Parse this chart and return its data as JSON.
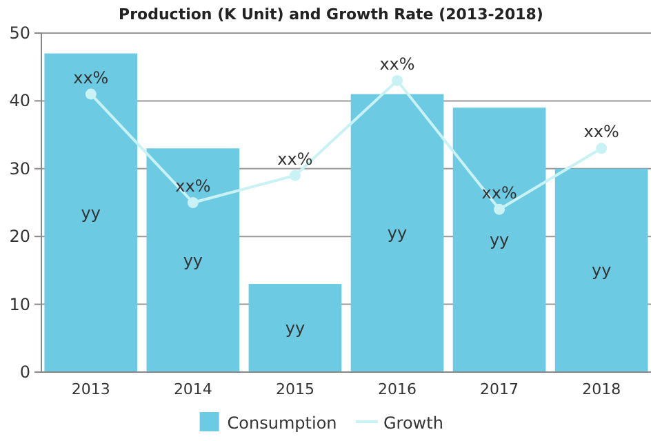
{
  "chart_data": {
    "type": "bar",
    "title": "Production (K Unit) and Growth Rate (2013-2018)",
    "categories": [
      "2013",
      "2014",
      "2015",
      "2016",
      "2017",
      "2018"
    ],
    "series": [
      {
        "name": "Consumption",
        "color": "#6ccbe3",
        "values": [
          47,
          33,
          13,
          41,
          39,
          30
        ],
        "value_labels": [
          "yy",
          "yy",
          "yy",
          "yy",
          "yy",
          "yy"
        ]
      },
      {
        "name": "Growth",
        "type": "line",
        "color": "#c9f2f5",
        "values": [
          41,
          25,
          29,
          43,
          24,
          33
        ],
        "value_labels": [
          "xx%",
          "xx%",
          "xx%",
          "xx%",
          "xx%",
          "xx%"
        ],
        "marker": "circle"
      }
    ],
    "ylim": [
      0,
      50
    ],
    "yticks": [
      0,
      10,
      20,
      30,
      40,
      50
    ],
    "grid": "y",
    "legend": "bottom"
  }
}
